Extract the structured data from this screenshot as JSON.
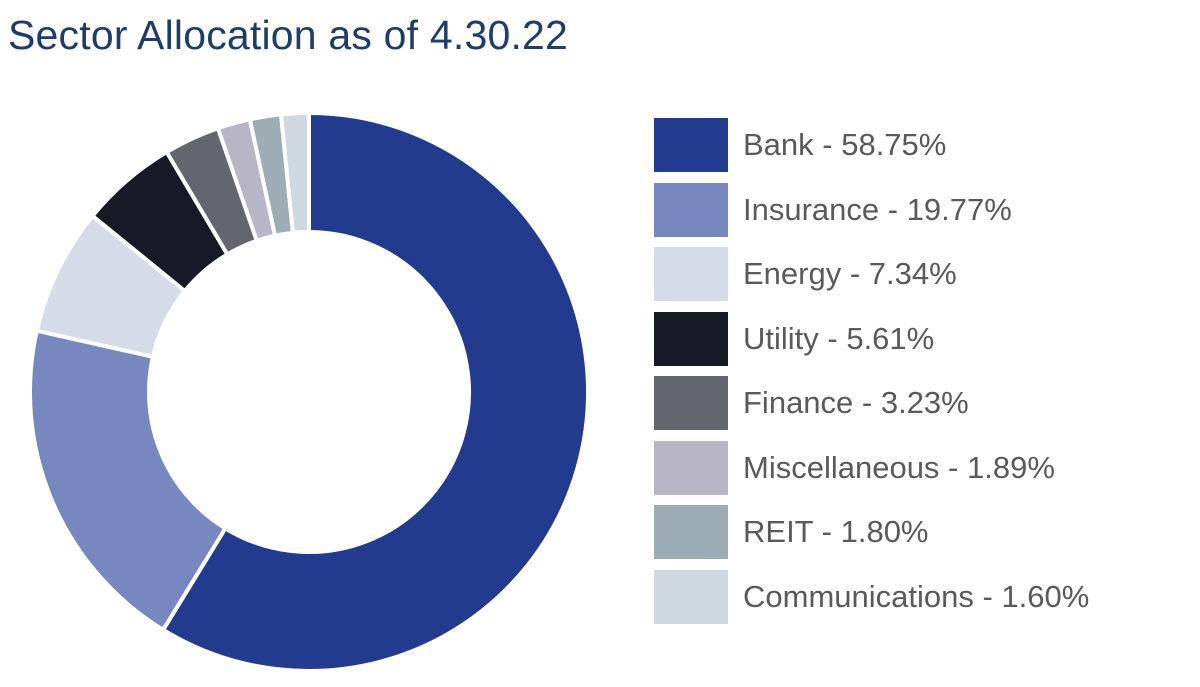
{
  "chart_data": {
    "type": "pie",
    "title": "Sector Allocation as of 4.30.22",
    "categories": [
      "Bank",
      "Insurance",
      "Energy",
      "Utility",
      "Finance",
      "Miscellaneous",
      "REIT",
      "Communications"
    ],
    "values": [
      58.75,
      19.77,
      7.34,
      5.61,
      3.23,
      1.89,
      1.8,
      1.6
    ],
    "legend_labels": [
      "Bank - 58.75%",
      "Insurance - 19.77%",
      "Energy - 7.34%",
      "Utility - 5.61%",
      "Finance - 3.23%",
      "Miscellaneous - 1.89%",
      "REIT - 1.80%",
      "Communications - 1.60%"
    ],
    "colors": [
      "#233b8f",
      "#7688bf",
      "#d6dbe9",
      "#161a26",
      "#63666e",
      "#b7b5c6",
      "#9dadb5",
      "#cfd8de"
    ],
    "donut": true,
    "legend_position": "right"
  }
}
